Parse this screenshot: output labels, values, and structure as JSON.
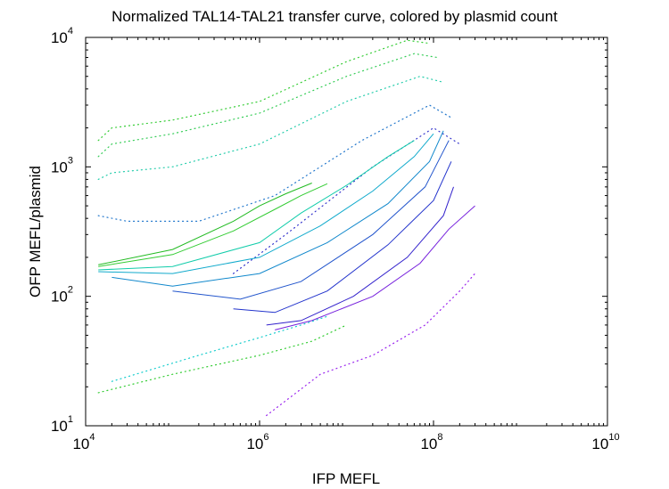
{
  "chart_data": {
    "type": "line",
    "title": "Normalized TAL14-TAL21 transfer curve, colored by plasmid count",
    "xlabel": "IFP MEFL",
    "ylabel": "OFP MEFL/plasmid",
    "xscale": "log",
    "yscale": "log",
    "xlim": [
      10000,
      10000000000
    ],
    "ylim": [
      10,
      10000
    ],
    "x_ticks": [
      {
        "base": "10",
        "exp": "4",
        "value": 10000
      },
      {
        "base": "10",
        "exp": "6",
        "value": 1000000
      },
      {
        "base": "10",
        "exp": "8",
        "value": 100000000
      },
      {
        "base": "10",
        "exp": "10",
        "value": 10000000000
      }
    ],
    "y_ticks": [
      {
        "base": "10",
        "exp": "1",
        "value": 10
      },
      {
        "base": "10",
        "exp": "2",
        "value": 100
      },
      {
        "base": "10",
        "exp": "3",
        "value": 1000
      },
      {
        "base": "10",
        "exp": "4",
        "value": 10000
      }
    ],
    "grid": false,
    "legend": "none",
    "color_encoding": "plasmid count (green = low, cyan = mid, blue/purple = high)",
    "colors": {
      "low": "#22cc22",
      "mid": "#11cccc",
      "high": "#2222cc",
      "highest": "#9922ee"
    },
    "series": [
      {
        "style": "dotted",
        "color": "#33cc33",
        "x": [
          14000,
          20000,
          100000,
          1000000,
          10000000,
          50000000,
          90000000
        ],
        "y": [
          1600,
          2000,
          2300,
          3200,
          6500,
          9500,
          9000
        ]
      },
      {
        "style": "dotted",
        "color": "#33cc55",
        "x": [
          14000,
          20000,
          100000,
          1000000,
          10000000,
          60000000,
          110000000
        ],
        "y": [
          1200,
          1500,
          1800,
          2600,
          5000,
          7500,
          7000
        ]
      },
      {
        "style": "dotted",
        "color": "#22ccaa",
        "x": [
          14000,
          20000,
          100000,
          1000000,
          10000000,
          70000000,
          130000000
        ],
        "y": [
          800,
          900,
          1000,
          1500,
          3200,
          5000,
          4500
        ]
      },
      {
        "style": "dotted",
        "color": "#2277cc",
        "x": [
          14000,
          30000,
          200000,
          1500000,
          15000000,
          90000000,
          160000000
        ],
        "y": [
          420,
          380,
          380,
          600,
          1600,
          3000,
          2400
        ]
      },
      {
        "style": "dotted",
        "color": "#3333cc",
        "x": [
          500000,
          2000000,
          20000000,
          100000000,
          200000000
        ],
        "y": [
          150,
          300,
          1000,
          2000,
          1500
        ]
      },
      {
        "style": "solid",
        "color": "#22bb22",
        "x": [
          14000,
          100000,
          500000,
          1000000,
          2000000,
          4000000
        ],
        "y": [
          175,
          230,
          380,
          500,
          620,
          750
        ]
      },
      {
        "style": "solid",
        "color": "#33cc33",
        "x": [
          14000,
          100000,
          500000,
          1500000,
          3000000,
          6000000
        ],
        "y": [
          170,
          210,
          320,
          470,
          600,
          740
        ]
      },
      {
        "style": "solid",
        "color": "#11ccaa",
        "x": [
          14000,
          100000,
          1000000,
          3000000,
          10000000,
          30000000,
          60000000
        ],
        "y": [
          160,
          170,
          260,
          440,
          720,
          1200,
          1600
        ]
      },
      {
        "style": "solid",
        "color": "#11aacc",
        "x": [
          14000,
          100000,
          1000000,
          5000000,
          20000000,
          60000000,
          100000000
        ],
        "y": [
          155,
          150,
          200,
          350,
          650,
          1200,
          1800
        ]
      },
      {
        "style": "solid",
        "color": "#1188cc",
        "x": [
          20000,
          100000,
          1000000,
          6000000,
          30000000,
          90000000,
          130000000
        ],
        "y": [
          140,
          120,
          150,
          260,
          520,
          1100,
          1900
        ]
      },
      {
        "style": "solid",
        "color": "#2255cc",
        "x": [
          100000,
          600000,
          3000000,
          20000000,
          80000000,
          150000000
        ],
        "y": [
          110,
          95,
          130,
          300,
          700,
          1600
        ]
      },
      {
        "style": "solid",
        "color": "#2233cc",
        "x": [
          500000,
          1500000,
          6000000,
          30000000,
          100000000,
          160000000
        ],
        "y": [
          80,
          75,
          110,
          250,
          550,
          1100
        ]
      },
      {
        "style": "solid",
        "color": "#3322cc",
        "x": [
          1200000,
          3000000,
          12000000,
          50000000,
          130000000,
          170000000
        ],
        "y": [
          60,
          65,
          100,
          200,
          420,
          700
        ]
      },
      {
        "style": "solid",
        "color": "#7722dd",
        "x": [
          1500000,
          4000000,
          20000000,
          70000000,
          150000000,
          300000000
        ],
        "y": [
          55,
          65,
          100,
          180,
          330,
          500
        ]
      },
      {
        "style": "dotted",
        "color": "#33cc33",
        "x": [
          14000,
          100000,
          1000000,
          4000000,
          10000000
        ],
        "y": [
          18,
          25,
          35,
          45,
          60
        ]
      },
      {
        "style": "dotted",
        "color": "#11cccc",
        "x": [
          20000,
          200000,
          1000000,
          3000000,
          6000000
        ],
        "y": [
          22,
          35,
          48,
          60,
          70
        ]
      },
      {
        "style": "dotted",
        "color": "#9922ee",
        "x": [
          1200000,
          5000000,
          20000000,
          80000000,
          200000000,
          300000000
        ],
        "y": [
          12,
          25,
          35,
          60,
          110,
          150
        ]
      }
    ]
  }
}
